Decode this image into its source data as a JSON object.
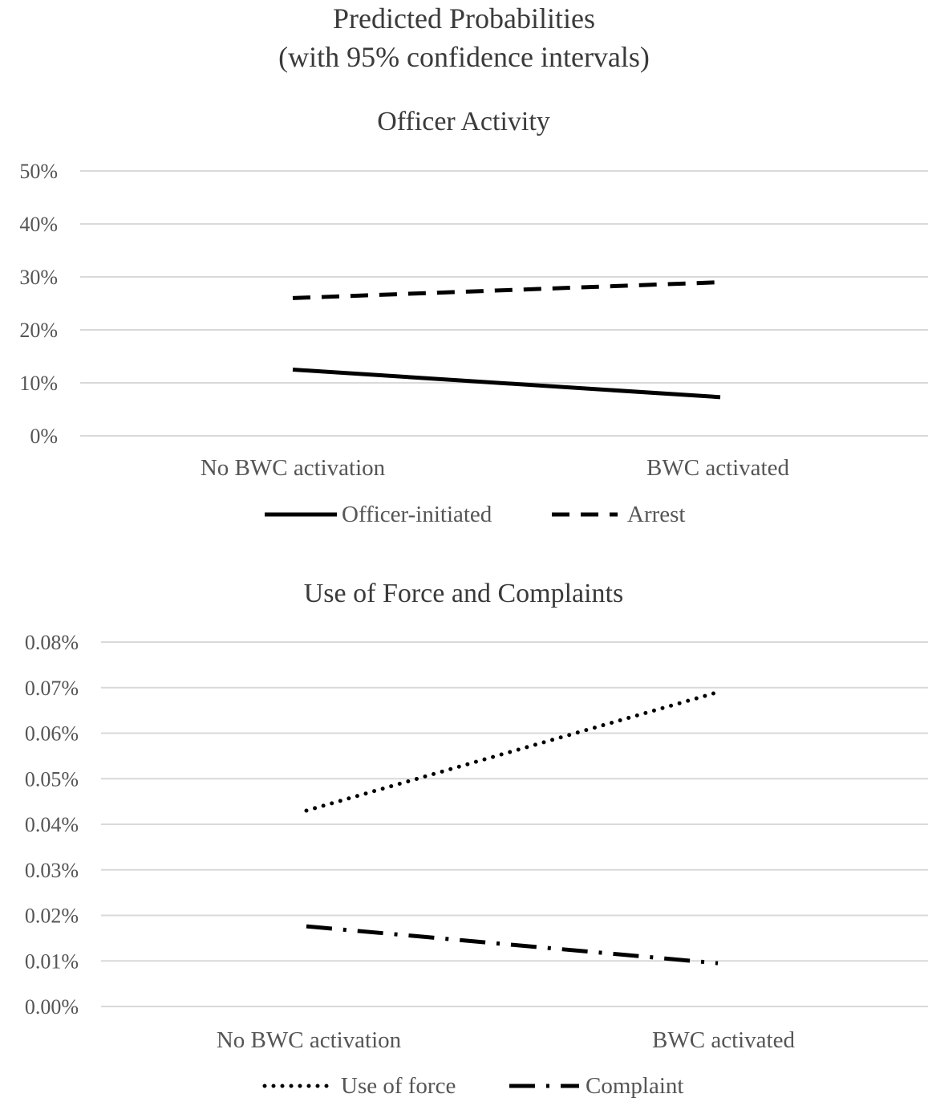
{
  "figure": {
    "title": "Predicted Probabilities",
    "subtitle": "(with 95% confidence intervals)"
  },
  "chart_data": [
    {
      "type": "line",
      "title": "Officer Activity",
      "xlabel": "",
      "ylabel": "",
      "categories": [
        "No BWC activation",
        "BWC activated"
      ],
      "ylim": [
        0,
        50
      ],
      "yticks": [
        "0%",
        "10%",
        "20%",
        "30%",
        "40%",
        "50%"
      ],
      "ytick_values": [
        0,
        10,
        20,
        30,
        40,
        50
      ],
      "grid": true,
      "legend_position": "bottom",
      "series": [
        {
          "name": "Officer-initiated",
          "values": [
            12.5,
            7.3
          ],
          "style": "solid",
          "color": "#000000"
        },
        {
          "name": "Arrest",
          "values": [
            26.0,
            29.0
          ],
          "style": "dashed",
          "color": "#000000"
        }
      ]
    },
    {
      "type": "line",
      "title": "Use of Force and Complaints",
      "xlabel": "",
      "ylabel": "",
      "categories": [
        "No BWC activation",
        "BWC activated"
      ],
      "ylim": [
        0,
        0.08
      ],
      "yticks": [
        "0.00%",
        "0.01%",
        "0.02%",
        "0.03%",
        "0.04%",
        "0.05%",
        "0.06%",
        "0.07%",
        "0.08%"
      ],
      "ytick_values": [
        0,
        0.01,
        0.02,
        0.03,
        0.04,
        0.05,
        0.06,
        0.07,
        0.08
      ],
      "grid": true,
      "legend_position": "bottom",
      "series": [
        {
          "name": "Use of force",
          "values": [
            0.043,
            0.069
          ],
          "style": "dotted",
          "color": "#000000"
        },
        {
          "name": "Complaint",
          "values": [
            0.0176,
            0.0095
          ],
          "style": "dash-dot",
          "color": "#000000"
        }
      ]
    }
  ]
}
